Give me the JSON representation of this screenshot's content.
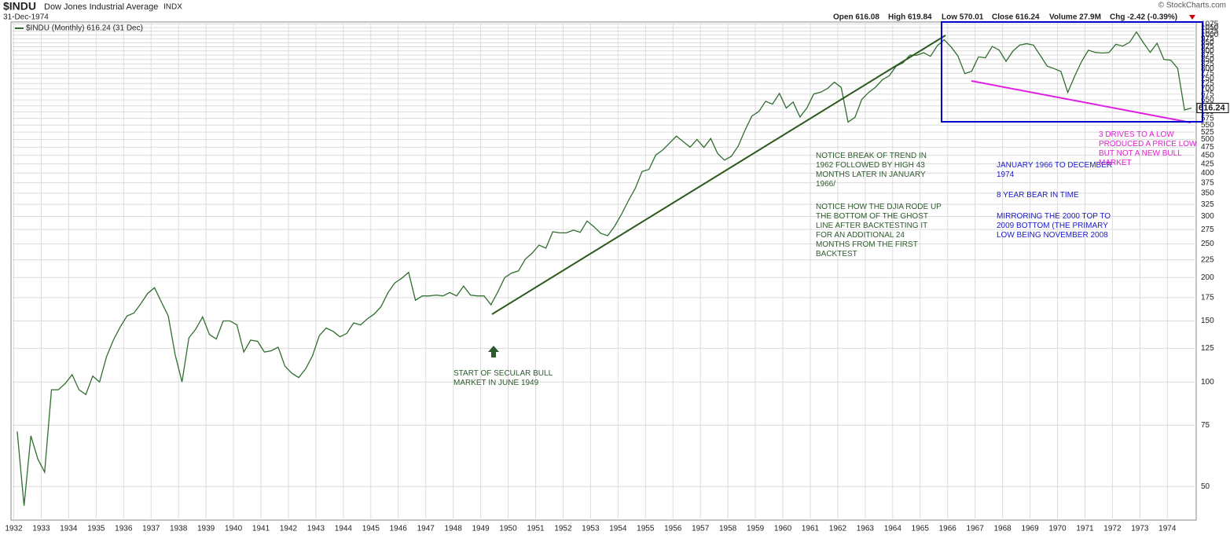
{
  "chart_data": {
    "type": "line",
    "symbol": "$INDU",
    "name": "Dow Jones Industrial Average",
    "exchange": "INDX",
    "date": "31-Dec-1974",
    "stats": [
      "Open 616.08",
      "High 619.84",
      "Low 570.01",
      "Close 616.24",
      "Volume 27.9M",
      "Chg -2.42 (-0.39%)"
    ],
    "copyright": "© StockCharts.com",
    "last_value_label": "616.24",
    "log_scale": true,
    "grid": true,
    "xlim": [
      1931.9,
      1975.05
    ],
    "ylim": [
      40,
      1090
    ],
    "xticks": [
      1932,
      1933,
      1934,
      1935,
      1936,
      1937,
      1938,
      1939,
      1940,
      1941,
      1942,
      1943,
      1944,
      1945,
      1946,
      1947,
      1948,
      1949,
      1950,
      1951,
      1952,
      1953,
      1954,
      1955,
      1956,
      1957,
      1958,
      1959,
      1960,
      1961,
      1962,
      1963,
      1964,
      1965,
      1966,
      1967,
      1968,
      1969,
      1970,
      1971,
      1972,
      1973,
      1974
    ],
    "yticks": [
      50,
      75,
      100,
      125,
      150,
      175,
      200,
      225,
      250,
      275,
      300,
      325,
      350,
      375,
      400,
      425,
      450,
      475,
      500,
      525,
      550,
      575,
      600,
      625,
      650,
      675,
      700,
      725,
      750,
      775,
      800,
      825,
      850,
      875,
      900,
      925,
      950,
      975,
      1000,
      1025,
      1050,
      1075
    ],
    "series": [
      {
        "name": "$INDU (Monthly) 616.24 (31 Dec)",
        "color": "#2f6e2f",
        "x": [
          1932.125,
          1932.375,
          1932.625,
          1932.875,
          1933.125,
          1933.375,
          1933.625,
          1933.875,
          1934.125,
          1934.375,
          1934.625,
          1934.875,
          1935.125,
          1935.375,
          1935.625,
          1935.875,
          1936.125,
          1936.375,
          1936.625,
          1936.875,
          1937.125,
          1937.375,
          1937.625,
          1937.875,
          1938.125,
          1938.375,
          1938.625,
          1938.875,
          1939.125,
          1939.375,
          1939.625,
          1939.875,
          1940.125,
          1940.375,
          1940.625,
          1940.875,
          1941.125,
          1941.375,
          1941.625,
          1941.875,
          1942.125,
          1942.375,
          1942.625,
          1942.875,
          1943.125,
          1943.375,
          1943.625,
          1943.875,
          1944.125,
          1944.375,
          1944.625,
          1944.875,
          1945.125,
          1945.375,
          1945.625,
          1945.875,
          1946.125,
          1946.375,
          1946.625,
          1946.875,
          1947.125,
          1947.375,
          1947.625,
          1947.875,
          1948.125,
          1948.375,
          1948.625,
          1948.875,
          1949.125,
          1949.375,
          1949.625,
          1949.875,
          1950.125,
          1950.375,
          1950.625,
          1950.875,
          1951.125,
          1951.375,
          1951.625,
          1951.875,
          1952.125,
          1952.375,
          1952.625,
          1952.875,
          1953.125,
          1953.375,
          1953.625,
          1953.875,
          1954.125,
          1954.375,
          1954.625,
          1954.875,
          1955.125,
          1955.375,
          1955.625,
          1955.875,
          1956.125,
          1956.375,
          1956.625,
          1956.875,
          1957.125,
          1957.375,
          1957.625,
          1957.875,
          1958.125,
          1958.375,
          1958.625,
          1958.875,
          1959.125,
          1959.375,
          1959.625,
          1959.875,
          1960.125,
          1960.375,
          1960.625,
          1960.875,
          1961.125,
          1961.375,
          1961.625,
          1961.875,
          1962.125,
          1962.375,
          1962.625,
          1962.875,
          1963.125,
          1963.375,
          1963.625,
          1963.875,
          1964.125,
          1964.375,
          1964.625,
          1964.875,
          1965.125,
          1965.375,
          1965.625,
          1965.875,
          1966.125,
          1966.375,
          1966.625,
          1966.875,
          1967.125,
          1967.375,
          1967.625,
          1967.875,
          1968.125,
          1968.375,
          1968.625,
          1968.875,
          1969.125,
          1969.375,
          1969.625,
          1969.875,
          1970.125,
          1970.375,
          1970.625,
          1970.875,
          1971.125,
          1971.375,
          1971.625,
          1971.875,
          1972.125,
          1972.375,
          1972.625,
          1972.875,
          1973.125,
          1973.375,
          1973.625,
          1973.875,
          1974.125,
          1974.375,
          1974.625,
          1974.875
        ],
        "values": [
          72,
          44,
          70,
          60,
          55,
          95,
          95,
          99,
          105,
          95,
          92,
          104,
          100,
          118,
          132,
          144,
          155,
          158,
          168,
          180,
          187,
          170,
          155,
          120,
          100,
          134,
          142,
          154,
          137,
          133,
          150,
          150,
          146,
          122,
          132,
          131,
          122,
          123,
          126,
          111,
          106,
          103,
          109,
          119,
          136,
          143,
          140,
          135,
          138,
          148,
          146,
          152,
          157,
          165,
          181,
          193,
          199,
          207,
          172,
          177,
          177,
          178,
          177,
          181,
          177,
          189,
          178,
          177,
          177,
          167,
          182,
          200,
          206,
          209,
          226,
          235,
          248,
          243,
          271,
          269,
          269,
          274,
          270,
          291,
          280,
          268,
          264,
          281,
          304,
          333,
          361,
          404,
          410,
          451,
          466,
          488,
          511,
          493,
          475,
          500,
          474,
          503,
          456,
          436,
          447,
          478,
          532,
          584,
          602,
          644,
          632,
          679,
          616,
          641,
          580,
          616,
          676,
          684,
          701,
          731,
          706,
          561,
          579,
          652,
          683,
          707,
          743,
          763,
          813,
          831,
          875,
          874,
          889,
          868,
          931,
          969,
          924,
          870,
          774,
          786,
          865,
          860,
          927,
          905,
          840,
          898,
          935,
          944,
          935,
          873,
          813,
          800,
          785,
          683,
          761,
          838,
          904,
          891,
          887,
          890,
          940,
          929,
          953,
          1020,
          951,
          891,
          947,
          850,
          846,
          802,
          608,
          616
        ]
      }
    ],
    "annotations": [
      {
        "color": "#2e5a2e",
        "lines": [
          "START OF SECULAR BULL",
          "MARKET IN JUNE 1949"
        ]
      },
      {
        "color": "#2e5a2e",
        "lines": [
          "NOTICE BREAK OF TREND IN",
          "1962 FOLLOWED BY HIGH 43",
          "MONTHS LATER IN JANUARY",
          "1966/"
        ]
      },
      {
        "color": "#2e5a2e",
        "lines": [
          "NOTICE HOW THE DJIA RODE UP",
          "THE BOTTOM OF THE GHOST",
          "LINE AFTER BACKTESTING IT",
          "FOR AN ADDITIONAL 24",
          "MONTHS FROM  THE FIRST",
          "BACKTEST"
        ]
      },
      {
        "color": "#1a1acc",
        "lines": [
          "JANUARY 1966 TO DECEMBER",
          "1974"
        ]
      },
      {
        "color": "#1a1acc",
        "lines": [
          "8 YEAR BEAR IN TIME"
        ]
      },
      {
        "color": "#1a1acc",
        "lines": [
          "MIRRORING THE 2000 TOP TO",
          "2009 BOTTOM (THE PRIMARY",
          "LOW BEING NOVEMBER 2008"
        ]
      },
      {
        "color": "#e020d0",
        "lines": [
          "3 DRIVES TO A LOW",
          "PRODUCED A PRICE LOW",
          "BUT NOT A NEW BULL",
          "MARKET"
        ]
      }
    ]
  }
}
